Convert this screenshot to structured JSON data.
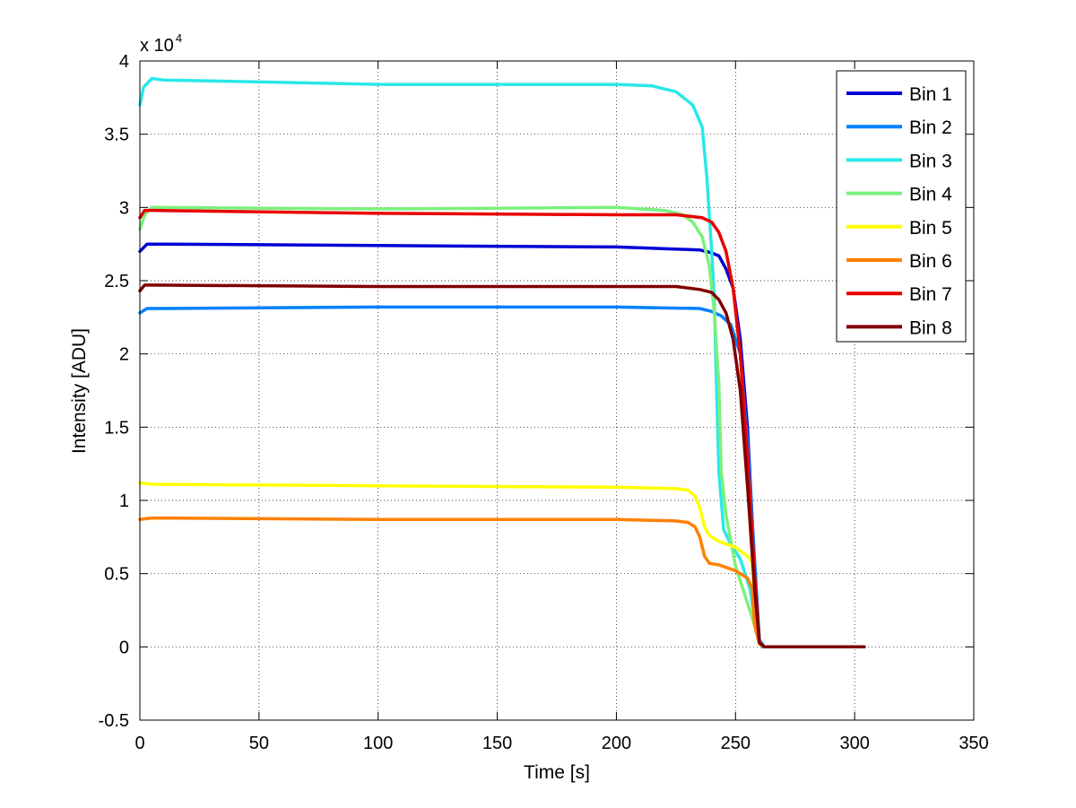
{
  "chart_data": {
    "type": "line",
    "title": "",
    "xlabel": "Time [s]",
    "ylabel": "Intensity [ADU]",
    "xlim": [
      0,
      350
    ],
    "ylim": [
      -0.5,
      4
    ],
    "y_multiplier_base": "x 10",
    "y_multiplier_exp": "4",
    "xticks": [
      0,
      50,
      100,
      150,
      200,
      250,
      300,
      350
    ],
    "xtick_labels": [
      "0",
      "50",
      "100",
      "150",
      "200",
      "250",
      "300",
      "350"
    ],
    "yticks": [
      -0.5,
      0,
      0.5,
      1,
      1.5,
      2,
      2.5,
      3,
      3.5,
      4
    ],
    "ytick_labels": [
      "-0.5",
      "0",
      "0.5",
      "1",
      "1.5",
      "2",
      "2.5",
      "3",
      "3.5",
      "4"
    ],
    "grid": true,
    "legend_position": "top-right",
    "series": [
      {
        "name": "Bin 1",
        "color": "#0000d4",
        "x": [
          0,
          3,
          10,
          100,
          200,
          235,
          240,
          243,
          246,
          249,
          252,
          255,
          258,
          260,
          262,
          270,
          304
        ],
        "y": [
          2.7,
          2.75,
          2.75,
          2.74,
          2.73,
          2.71,
          2.69,
          2.67,
          2.58,
          2.45,
          2.1,
          1.5,
          0.55,
          0.03,
          0,
          0,
          0
        ]
      },
      {
        "name": "Bin 2",
        "color": "#0080ff",
        "x": [
          0,
          3,
          10,
          100,
          200,
          235,
          240,
          244,
          248,
          252,
          255,
          258,
          260,
          262,
          270,
          304
        ],
        "y": [
          2.28,
          2.31,
          2.31,
          2.32,
          2.32,
          2.31,
          2.29,
          2.26,
          2.2,
          2.0,
          1.4,
          0.6,
          0.05,
          0,
          0,
          0
        ]
      },
      {
        "name": "Bin 3",
        "color": "#2ae8e8",
        "x": [
          0,
          1.5,
          5,
          10,
          100,
          200,
          215,
          225,
          232,
          236,
          238,
          240,
          241,
          242,
          243,
          245,
          248,
          252,
          256,
          259,
          261,
          270,
          304
        ],
        "y": [
          3.7,
          3.82,
          3.88,
          3.87,
          3.84,
          3.84,
          3.83,
          3.79,
          3.7,
          3.55,
          3.2,
          2.7,
          2.4,
          1.8,
          1.2,
          0.8,
          0.7,
          0.6,
          0.4,
          0.1,
          0,
          0,
          0
        ]
      },
      {
        "name": "Bin 4",
        "color": "#7cf07c",
        "x": [
          0,
          2,
          5,
          100,
          200,
          220,
          228,
          232,
          236,
          239,
          241,
          243,
          244,
          246,
          250,
          254,
          258,
          260,
          262,
          270,
          304
        ],
        "y": [
          2.85,
          2.95,
          3.0,
          2.99,
          3.0,
          2.98,
          2.95,
          2.9,
          2.8,
          2.6,
          2.3,
          1.8,
          1.2,
          0.9,
          0.55,
          0.35,
          0.15,
          0.02,
          0,
          0,
          0
        ]
      },
      {
        "name": "Bin 5",
        "color": "#ffff00",
        "x": [
          0,
          5,
          100,
          200,
          225,
          230,
          233,
          235,
          237,
          239,
          243,
          250,
          255,
          257,
          258,
          260,
          262,
          270,
          304
        ],
        "y": [
          1.12,
          1.11,
          1.1,
          1.09,
          1.08,
          1.07,
          1.03,
          0.95,
          0.82,
          0.76,
          0.72,
          0.68,
          0.62,
          0.58,
          0.2,
          0.02,
          0,
          0,
          0
        ]
      },
      {
        "name": "Bin 6",
        "color": "#ff8000",
        "x": [
          0,
          5,
          100,
          200,
          225,
          230,
          233,
          235,
          237,
          239,
          243,
          250,
          255,
          257,
          258,
          260,
          262,
          270,
          304
        ],
        "y": [
          0.87,
          0.88,
          0.87,
          0.87,
          0.86,
          0.85,
          0.82,
          0.75,
          0.62,
          0.57,
          0.56,
          0.52,
          0.47,
          0.4,
          0.15,
          0.02,
          0,
          0,
          0
        ]
      },
      {
        "name": "Bin 7",
        "color": "#e80000",
        "x": [
          0,
          2,
          5,
          100,
          200,
          225,
          236,
          240,
          243,
          246,
          249,
          252,
          255,
          258,
          260,
          262,
          270,
          304
        ],
        "y": [
          2.93,
          2.98,
          2.98,
          2.96,
          2.95,
          2.95,
          2.93,
          2.9,
          2.83,
          2.7,
          2.45,
          2.0,
          1.3,
          0.5,
          0.03,
          0,
          0,
          0
        ]
      },
      {
        "name": "Bin 8",
        "color": "#800000",
        "x": [
          0,
          2,
          5,
          100,
          200,
          225,
          235,
          240,
          243,
          246,
          249,
          252,
          255,
          258,
          260,
          262,
          270,
          304
        ],
        "y": [
          2.43,
          2.47,
          2.47,
          2.46,
          2.46,
          2.46,
          2.44,
          2.42,
          2.37,
          2.28,
          2.1,
          1.75,
          1.1,
          0.4,
          0.03,
          0,
          0,
          0
        ]
      }
    ]
  }
}
